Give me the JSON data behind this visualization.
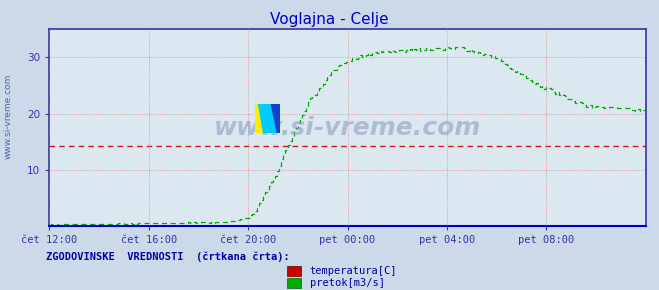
{
  "title": "Voglajna - Celje",
  "title_color": "#0000cc",
  "bg_color": "#ccd9e8",
  "plot_bg_color": "#dce8f0",
  "grid_color": "#dd6666",
  "axis_color": "#3333aa",
  "xlim": [
    0,
    288
  ],
  "ylim": [
    0,
    35
  ],
  "yticks": [
    10,
    20,
    30
  ],
  "xtick_labels": [
    "čet 12:00",
    "čet 16:00",
    "čet 20:00",
    "pet 00:00",
    "pet 04:00",
    "pet 08:00"
  ],
  "xtick_positions": [
    0,
    48,
    96,
    144,
    192,
    240
  ],
  "temp_value": 14.3,
  "temp_color": "#cc0000",
  "flow_color": "#00aa00",
  "watermark_text": "www.si-vreme.com",
  "watermark_color": "#8899bb",
  "sidebar_text": "www.si-vreme.com",
  "sidebar_color": "#4455aa",
  "legend_title": "ZGODOVINSKE  VREDNOSTI  (črtkana črta):",
  "legend_color": "#0000aa",
  "logo_yellow": "#ffee00",
  "logo_blue": "#1144cc",
  "logo_cyan": "#00ccff"
}
